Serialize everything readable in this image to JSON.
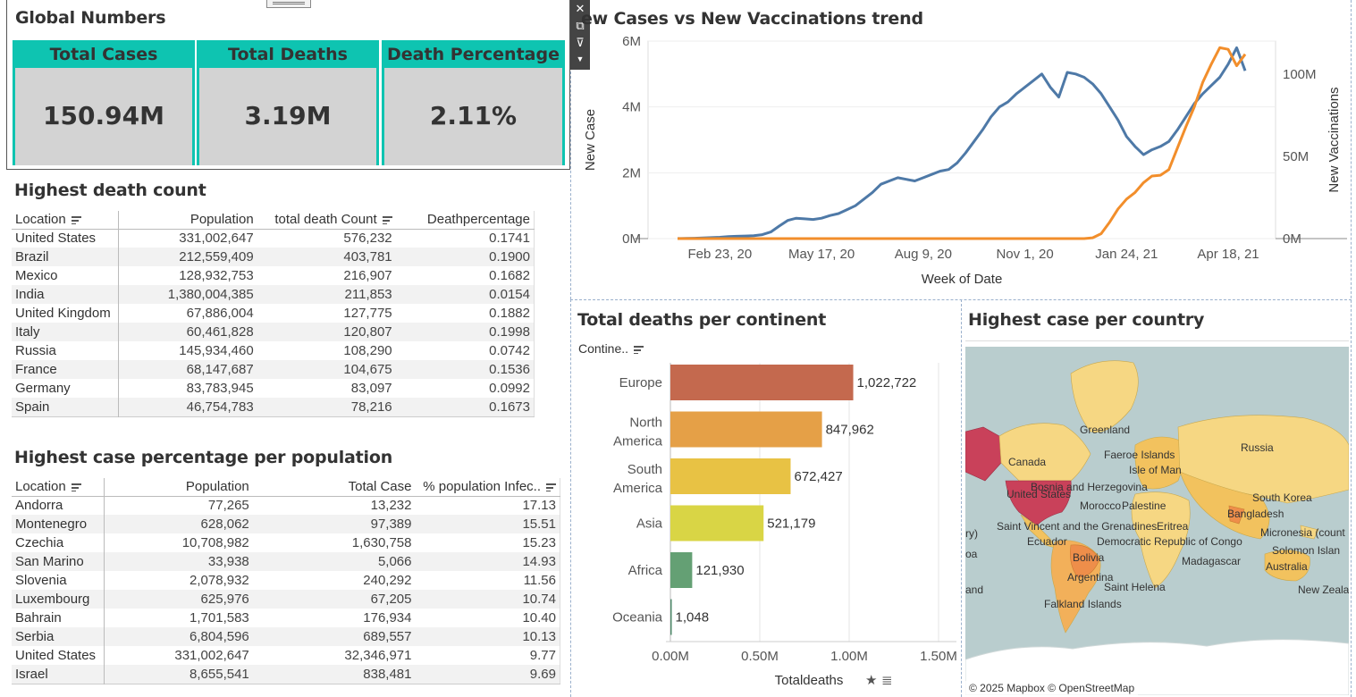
{
  "global": {
    "title": "Global Numbers",
    "kpis": [
      {
        "label": "Total Cases",
        "value": "150.94M"
      },
      {
        "label": "Total Deaths",
        "value": "3.19M"
      },
      {
        "label": "Death Percentage",
        "value": "2.11%"
      }
    ]
  },
  "toolbar": {
    "icons": [
      "close-icon",
      "popout-icon",
      "filter-icon",
      "more-icon"
    ]
  },
  "death_table": {
    "title": "Highest death count",
    "headers": [
      "Location",
      "Population",
      "total death Count",
      "Deathpercentage"
    ],
    "rows": [
      [
        "United States",
        "331,002,647",
        "576,232",
        "0.1741"
      ],
      [
        "Brazil",
        "212,559,409",
        "403,781",
        "0.1900"
      ],
      [
        "Mexico",
        "128,932,753",
        "216,907",
        "0.1682"
      ],
      [
        "India",
        "1,380,004,385",
        "211,853",
        "0.0154"
      ],
      [
        "United Kingdom",
        "67,886,004",
        "127,775",
        "0.1882"
      ],
      [
        "Italy",
        "60,461,828",
        "120,807",
        "0.1998"
      ],
      [
        "Russia",
        "145,934,460",
        "108,290",
        "0.0742"
      ],
      [
        "France",
        "68,147,687",
        "104,675",
        "0.1536"
      ],
      [
        "Germany",
        "83,783,945",
        "83,097",
        "0.0992"
      ],
      [
        "Spain",
        "46,754,783",
        "78,216",
        "0.1673"
      ]
    ]
  },
  "case_table": {
    "title": "Highest case  percentage per population",
    "headers": [
      "Location",
      "Population",
      "Total Case",
      "% population Infec.."
    ],
    "rows": [
      [
        "Andorra",
        "77,265",
        "13,232",
        "17.13"
      ],
      [
        "Montenegro",
        "628,062",
        "97,389",
        "15.51"
      ],
      [
        "Czechia",
        "10,708,982",
        "1,630,758",
        "15.23"
      ],
      [
        "San Marino",
        "33,938",
        "5,066",
        "14.93"
      ],
      [
        "Slovenia",
        "2,078,932",
        "240,292",
        "11.56"
      ],
      [
        "Luxembourg",
        "625,976",
        "67,205",
        "10.74"
      ],
      [
        "Bahrain",
        "1,701,583",
        "176,934",
        "10.40"
      ],
      [
        "Serbia",
        "6,804,596",
        "689,557",
        "10.13"
      ],
      [
        "United States",
        "331,002,647",
        "32,346,971",
        "9.77"
      ],
      [
        "Israel",
        "8,655,541",
        "838,481",
        "9.69"
      ]
    ]
  },
  "chart_data": [
    {
      "type": "line",
      "title": "ew Cases vs New Vaccinations trend",
      "xlabel": "Week of Date",
      "ylabel": "New Case",
      "ylabel_right": "New Vaccinations",
      "x_ticks": [
        "Feb 23, 20",
        "May 17, 20",
        "Aug 9, 20",
        "Nov 1, 20",
        "Jan 24, 21",
        "Apr 18, 21"
      ],
      "y_ticks": [
        "0M",
        "2M",
        "4M",
        "6M"
      ],
      "y2_ticks": [
        "0M",
        "50M",
        "100M"
      ],
      "ylim": [
        0,
        6000000
      ],
      "y2lim": [
        0,
        120000000
      ],
      "week_start": "2020-01-19",
      "series": [
        {
          "name": "New Case",
          "axis": "left",
          "color": "#4e79a7",
          "values": [
            3000,
            5000,
            12000,
            20000,
            30000,
            40000,
            60000,
            70000,
            80000,
            90000,
            120000,
            200000,
            380000,
            550000,
            620000,
            600000,
            580000,
            620000,
            700000,
            760000,
            880000,
            1000000,
            1200000,
            1400000,
            1650000,
            1750000,
            1850000,
            1800000,
            1750000,
            1850000,
            1950000,
            2050000,
            2100000,
            2300000,
            2600000,
            2950000,
            3300000,
            3700000,
            4000000,
            4150000,
            4400000,
            4600000,
            4800000,
            5000000,
            4600000,
            4300000,
            5050000,
            5000000,
            4900000,
            4700000,
            4400000,
            4000000,
            3600000,
            3100000,
            2800000,
            2550000,
            2700000,
            2800000,
            2950000,
            3300000,
            3700000,
            4100000,
            4400000,
            4650000,
            4900000,
            5300000,
            5800000,
            5100000
          ]
        },
        {
          "name": "New Vaccinations",
          "axis": "right",
          "color": "#f28e2b",
          "values": [
            0,
            0,
            0,
            0,
            0,
            0,
            0,
            0,
            0,
            0,
            0,
            0,
            0,
            0,
            0,
            0,
            0,
            0,
            0,
            0,
            0,
            0,
            0,
            0,
            0,
            0,
            0,
            0,
            0,
            0,
            0,
            0,
            0,
            0,
            0,
            0,
            0,
            0,
            0,
            0,
            0,
            0,
            0,
            0,
            0,
            0,
            0,
            0,
            0,
            500000,
            3000000,
            10000000,
            18000000,
            24000000,
            28000000,
            34000000,
            38000000,
            38500000,
            42000000,
            55000000,
            68000000,
            80000000,
            95000000,
            106000000,
            116000000,
            115000000,
            105000000,
            112000000
          ]
        }
      ]
    },
    {
      "type": "bar",
      "title": "Total deaths per continent",
      "xlabel": "Totaldeaths",
      "ylabel": "Contine..",
      "categories": [
        "Europe",
        "North America",
        "South America",
        "Asia",
        "Africa",
        "Oceania"
      ],
      "values": [
        1022722,
        847962,
        672427,
        521179,
        121930,
        1048
      ],
      "value_labels": [
        "1,022,722",
        "847,962",
        "672,427",
        "521,179",
        "121,930",
        "1,048"
      ],
      "colors": [
        "#c4694e",
        "#e5a047",
        "#e8c244",
        "#d9d545",
        "#64a074",
        "#4f8a6b"
      ],
      "x_ticks": [
        "0.00M",
        "0.50M",
        "1.00M",
        "1.50M"
      ],
      "xlim": [
        0,
        1500000
      ]
    }
  ],
  "map": {
    "title": "Highest case per country",
    "attribution": "© 2025 Mapbox © OpenStreetMap",
    "labels": [
      "Greenland",
      "Russia",
      "Canada",
      "Faeroe Islands",
      "Isle of Man",
      "United States",
      "Bosnia and Herzegovina",
      "Morocco",
      "Palestine",
      "South Korea",
      "Bangladesh",
      "Saint Vincent and the Grenadines",
      "Eritrea",
      "ry)",
      "Ecuador",
      "Democratic Republic of Congo",
      "Micronesia (count",
      "Solomon Islan",
      "oa",
      "Bolivia",
      "Madagascar",
      "Australia",
      "Argentina",
      "Saint Helena",
      "New Zeala",
      "and",
      "Falkland Islands"
    ]
  }
}
